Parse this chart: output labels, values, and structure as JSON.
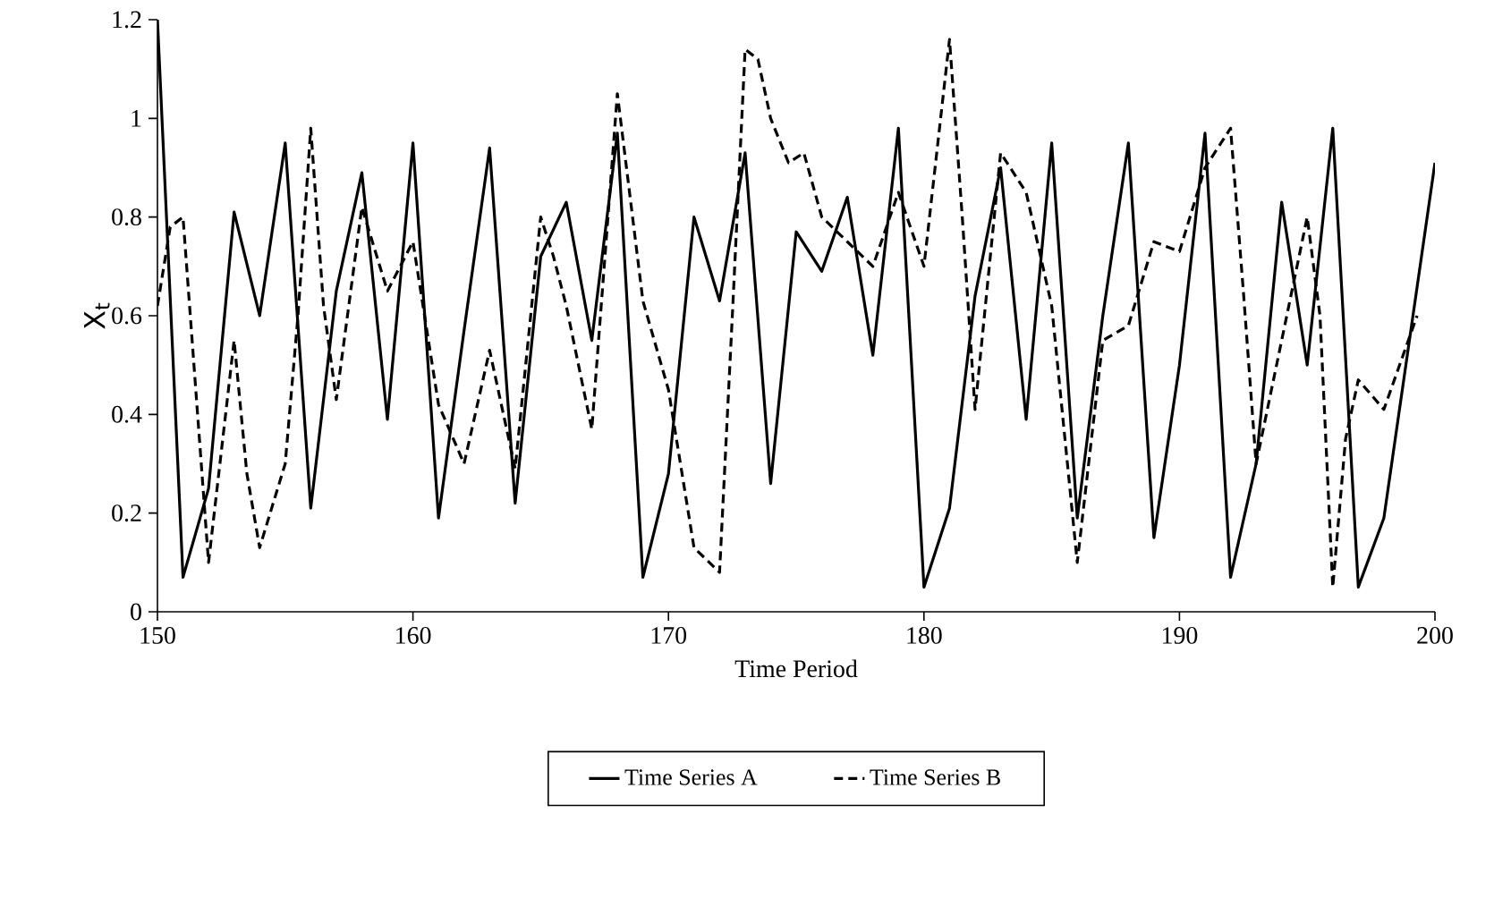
{
  "chart_data": {
    "type": "line",
    "xlabel": "Time Period",
    "ylabel": "X$_{t}$",
    "xlim": [
      150,
      200
    ],
    "xticks": [
      150,
      160,
      170,
      180,
      190,
      200
    ],
    "ylim": [
      0,
      1.2
    ],
    "yticks": [
      0,
      0.2,
      0.4,
      0.6,
      0.8,
      1,
      1.2
    ],
    "legend": "bottom",
    "grid": false,
    "marker": "none",
    "series": [
      {
        "name": "Time Series A",
        "color": "#000000",
        "line_style": "solid",
        "x": [
          150,
          151,
          152,
          153,
          154,
          155,
          156,
          157,
          158,
          159,
          160,
          161,
          162,
          163,
          164,
          165,
          166,
          167,
          168,
          169,
          170,
          171,
          172,
          173,
          174,
          175,
          176,
          177,
          178,
          179,
          180,
          181,
          182,
          183,
          184,
          185,
          186,
          187,
          188,
          189,
          190,
          191,
          192,
          193,
          194,
          195,
          196,
          197,
          198,
          199,
          200
        ],
        "values": [
          1.2,
          0.07,
          0.25,
          0.81,
          0.6,
          0.95,
          0.21,
          0.65,
          0.89,
          0.39,
          0.95,
          0.19,
          0.57,
          0.94,
          0.22,
          0.72,
          0.83,
          0.55,
          0.97,
          0.07,
          0.28,
          0.8,
          0.63,
          0.93,
          0.26,
          0.77,
          0.69,
          0.84,
          0.52,
          0.98,
          0.05,
          0.21,
          0.64,
          0.9,
          0.39,
          0.95,
          0.19,
          0.6,
          0.95,
          0.15,
          0.5,
          0.97,
          0.07,
          0.3,
          0.83,
          0.5,
          0.98,
          0.05,
          0.19,
          0.55,
          0.91
        ]
      },
      {
        "name": "Time Series B",
        "color": "#000000",
        "line_style": "dashed",
        "x": [
          150,
          150.5,
          151,
          151.5,
          152,
          153,
          153.5,
          154,
          155,
          155.5,
          156,
          156.5,
          157,
          158,
          159,
          160,
          161,
          162,
          163,
          164,
          165,
          165.5,
          166,
          167,
          168,
          169,
          170,
          171,
          172,
          172.5,
          173,
          173.5,
          174,
          174.7,
          175.3,
          176,
          177,
          178,
          179,
          180,
          181,
          181.5,
          182,
          183,
          184,
          185,
          186,
          187,
          188,
          189,
          190,
          191,
          192,
          192.5,
          193,
          194,
          195,
          195.5,
          196,
          196.5,
          197,
          198,
          199.3
        ],
        "values": [
          0.62,
          0.78,
          0.8,
          0.45,
          0.1,
          0.55,
          0.28,
          0.13,
          0.3,
          0.6,
          0.98,
          0.62,
          0.43,
          0.82,
          0.65,
          0.75,
          0.42,
          0.3,
          0.53,
          0.29,
          0.8,
          0.72,
          0.62,
          0.37,
          1.05,
          0.63,
          0.45,
          0.13,
          0.08,
          0.6,
          1.14,
          1.12,
          1.0,
          0.91,
          0.93,
          0.8,
          0.75,
          0.7,
          0.85,
          0.7,
          1.16,
          0.8,
          0.41,
          0.93,
          0.85,
          0.62,
          0.1,
          0.55,
          0.58,
          0.75,
          0.73,
          0.9,
          0.98,
          0.65,
          0.3,
          0.55,
          0.8,
          0.6,
          0.05,
          0.35,
          0.47,
          0.41,
          0.6
        ]
      }
    ]
  }
}
